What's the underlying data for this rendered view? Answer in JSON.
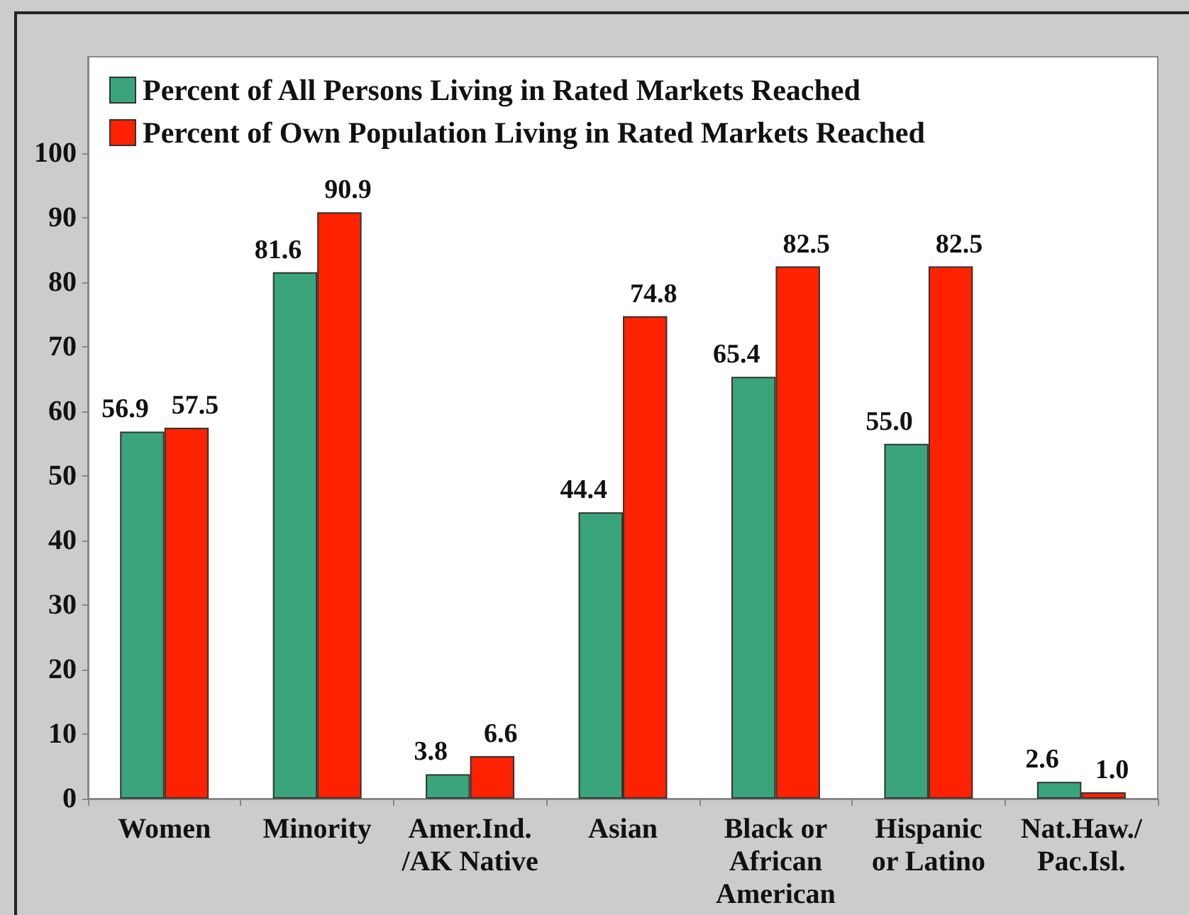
{
  "chart_data": {
    "type": "bar",
    "categories": [
      "Women",
      "Minority",
      "Amer.Ind.\n/AK Native",
      "Asian",
      "Black or\nAfrican\nAmerican",
      "Hispanic\nor Latino",
      "Nat.Haw./\nPac.Isl."
    ],
    "series": [
      {
        "name": "Percent of All Persons Living in Rated Markets Reached",
        "color": "#3aa57a",
        "values": [
          56.9,
          81.6,
          3.8,
          44.4,
          65.4,
          55.0,
          2.6
        ],
        "value_labels": [
          "56.9",
          "81.6",
          "3.8",
          "44.4",
          "65.4",
          "55.0",
          "2.6"
        ]
      },
      {
        "name": "Percent of Own Population Living in Rated Markets Reached",
        "color": "#ff2200",
        "values": [
          57.5,
          90.9,
          6.6,
          74.8,
          82.5,
          82.5,
          1.0
        ],
        "value_labels": [
          "57.5",
          "90.9",
          "6.6",
          "74.8",
          "82.5",
          "82.5",
          "1.0"
        ]
      }
    ],
    "ylim": [
      0,
      115
    ],
    "yticks": [
      0,
      10,
      20,
      30,
      40,
      50,
      60,
      70,
      80,
      90,
      100
    ],
    "grid": false,
    "legend": "top left"
  }
}
